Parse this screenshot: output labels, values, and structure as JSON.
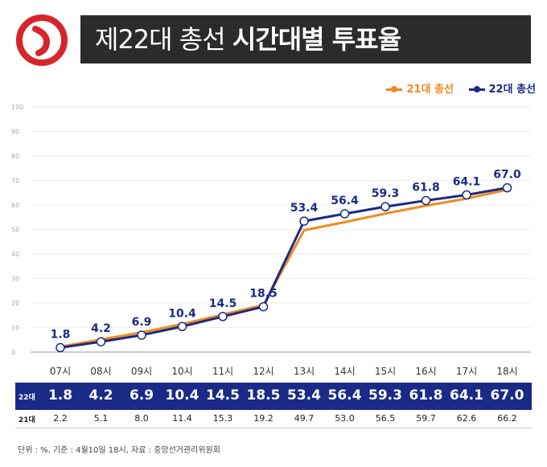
{
  "header": {
    "title_light": "제22대 총선",
    "title_bold": "시간대별 투표율",
    "logo": "vote-stamp-icon"
  },
  "colors": {
    "series_21": "#ef8a1f",
    "series_22": "#1a2a86",
    "title_bg": "#2b2b2b",
    "logo_red": "#d7262b"
  },
  "chart_data": {
    "type": "line",
    "title": "제22대 총선 시간대별 투표율",
    "categories": [
      "07시",
      "08시",
      "09시",
      "10시",
      "11시",
      "12시",
      "13시",
      "14시",
      "15시",
      "16시",
      "17시",
      "18시"
    ],
    "series": [
      {
        "name": "21대 총선",
        "values": [
          2.2,
          5.1,
          8.0,
          11.4,
          15.3,
          19.2,
          49.7,
          53.0,
          56.5,
          59.7,
          62.6,
          66.2
        ]
      },
      {
        "name": "22대 총선",
        "values": [
          1.8,
          4.2,
          6.9,
          10.4,
          14.5,
          18.5,
          53.4,
          56.4,
          59.3,
          61.8,
          64.1,
          67.0
        ]
      }
    ],
    "labels_22": [
      "1.8",
      "4.2",
      "6.9",
      "10.4",
      "14.5",
      "18.5",
      "53.4",
      "56.4",
      "59.3",
      "61.8",
      "64.1",
      "67.0"
    ],
    "yticks": [
      0,
      10,
      20,
      30,
      40,
      50,
      60,
      70,
      80,
      90,
      100
    ],
    "ylim": [
      0,
      100
    ],
    "xlabel": "",
    "ylabel": "",
    "legend": "top-right",
    "grid": false
  },
  "table": {
    "row_22_label": "22대",
    "row_21_label": "21대",
    "row_22_values": [
      "1.8",
      "4.2",
      "6.9",
      "10.4",
      "14.5",
      "18.5",
      "53.4",
      "56.4",
      "59.3",
      "61.8",
      "64.1",
      "67.0"
    ],
    "row_21_values": [
      "2.2",
      "5.1",
      "8.0",
      "11.4",
      "15.3",
      "19.2",
      "49.7",
      "53.0",
      "56.5",
      "59.7",
      "62.6",
      "66.2"
    ]
  },
  "footnote": "단위 : %, 기준 : 4월10일 18시, 자료 : 중앙선거관리위원회"
}
